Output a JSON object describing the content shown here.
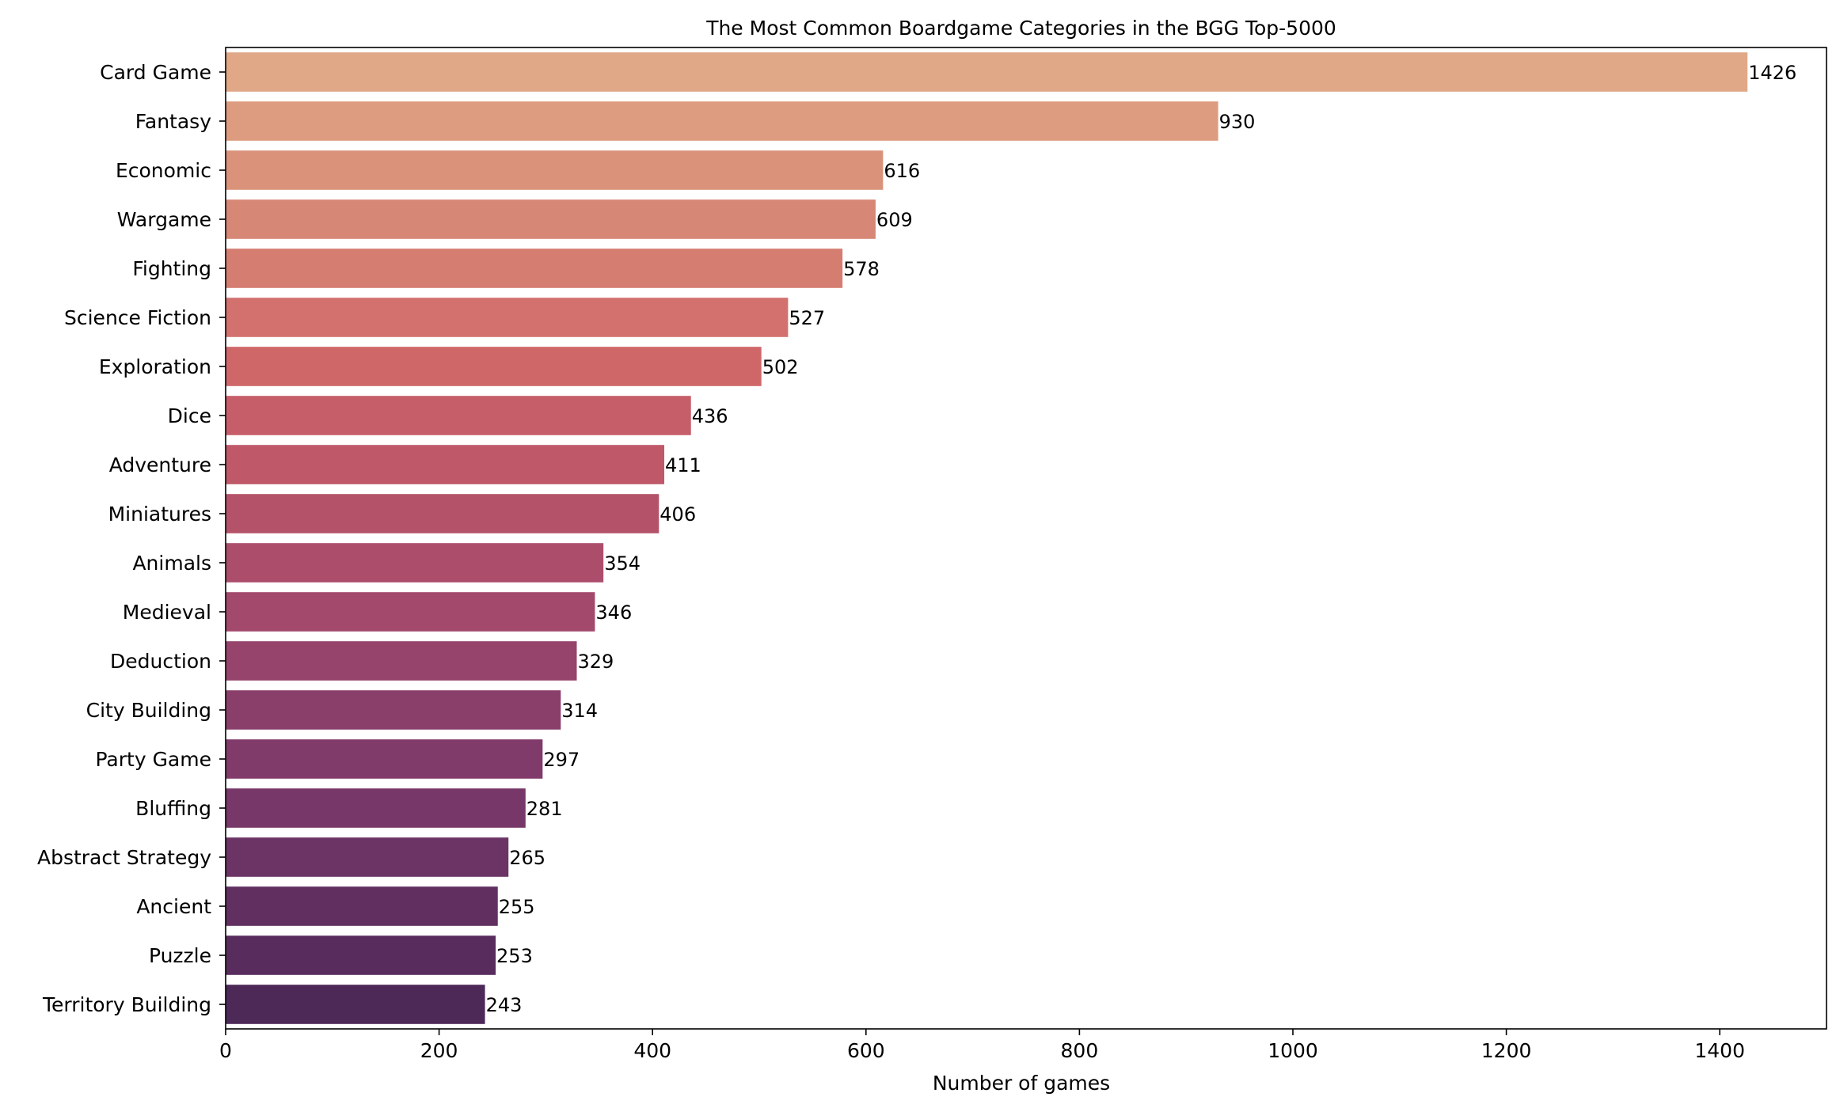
{
  "chart_data": {
    "type": "bar",
    "orientation": "horizontal",
    "title": "The Most Common Boardgame Categories in the BGG Top-5000",
    "xlabel": "Number of games",
    "ylabel": "",
    "xlim": [
      0,
      1500
    ],
    "xticks": [
      0,
      200,
      400,
      600,
      800,
      1000,
      1200,
      1400
    ],
    "categories": [
      "Card Game",
      "Fantasy",
      "Economic",
      "Wargame",
      "Fighting",
      "Science Fiction",
      "Exploration",
      "Dice",
      "Adventure",
      "Miniatures",
      "Animals",
      "Medieval",
      "Deduction",
      "City Building",
      "Party Game",
      "Bluffing",
      "Abstract Strategy",
      "Ancient",
      "Puzzle",
      "Territory Building"
    ],
    "values": [
      1426,
      930,
      616,
      609,
      578,
      527,
      502,
      436,
      411,
      406,
      354,
      346,
      329,
      314,
      297,
      281,
      265,
      255,
      253,
      243
    ],
    "colors": [
      "#e0a887",
      "#dd9c80",
      "#da937a",
      "#d78776",
      "#d57d71",
      "#d2716e",
      "#cf6769",
      "#c65e69",
      "#bf5869",
      "#b45269",
      "#ac4e6b",
      "#a2496c",
      "#96446b",
      "#8a3f6b",
      "#813b6a",
      "#773768",
      "#6c3465",
      "#613061",
      "#582d5e",
      "#4d2958"
    ],
    "grid": false,
    "legend": "none"
  }
}
